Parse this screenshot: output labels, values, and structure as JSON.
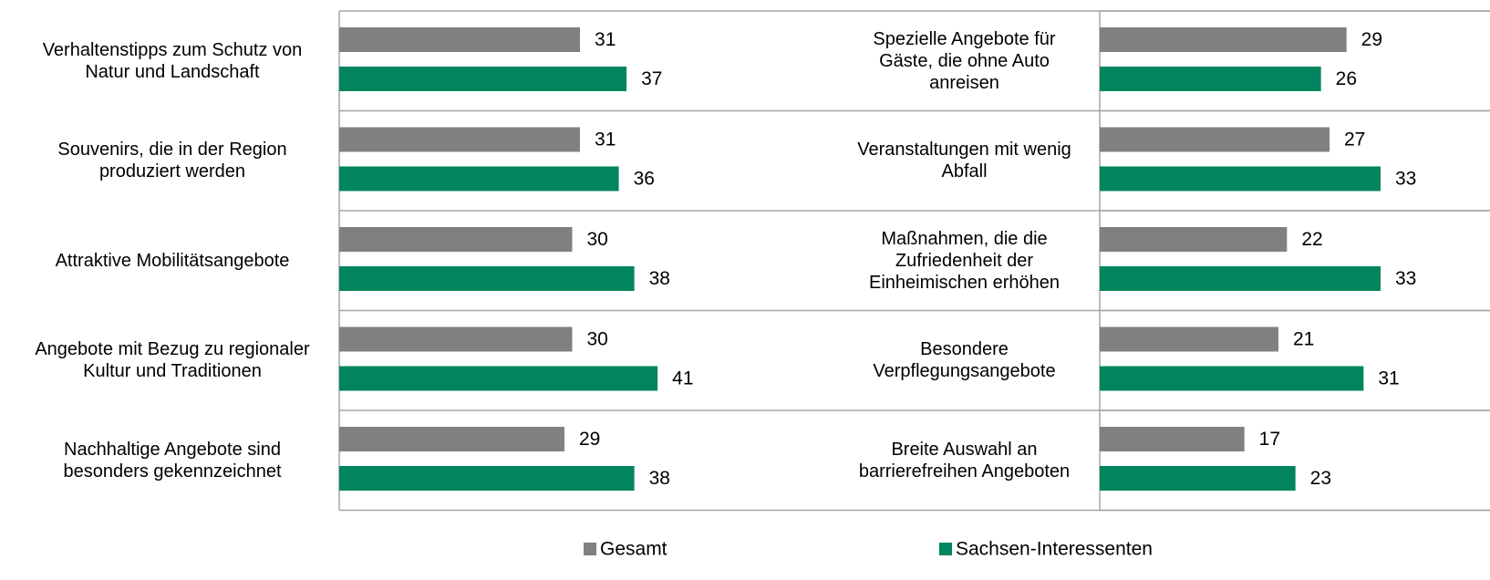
{
  "chart_data": [
    {
      "type": "bar",
      "orientation": "horizontal",
      "categories": [
        "Verhaltenstipps zum Schutz von\nNatur und Landschaft",
        "Souvenirs, die in der Region\nproduziert werden",
        "Attraktive Mobilitätsangebote",
        "Angebote mit Bezug zu regionaler\nKultur und Traditionen",
        "Nachhaltige Angebote sind\nbesonders gekennzeichnet"
      ],
      "series": [
        {
          "name": "Gesamt",
          "color": "#808080",
          "values": [
            31,
            31,
            30,
            30,
            29
          ]
        },
        {
          "name": "Sachsen-Interessenten",
          "color": "#00855f",
          "values": [
            37,
            36,
            38,
            41,
            38
          ]
        }
      ],
      "xlim": [
        0,
        60
      ]
    },
    {
      "type": "bar",
      "orientation": "horizontal",
      "categories": [
        "Spezielle Angebote für\nGäste, die ohne Auto\nanreisen",
        "Veranstaltungen mit wenig\nAbfall",
        "Maßnahmen, die die\nZufriedenheit der\nEinheimischen erhöhen",
        "Besondere\nVerpflegungsangebote",
        "Breite Auswahl an\nbarrierefreihen Angeboten"
      ],
      "series": [
        {
          "color": "#808080",
          "values": [
            29,
            27,
            22,
            21,
            17
          ]
        },
        {
          "color": "#00855f",
          "values": [
            26,
            33,
            33,
            31,
            23
          ]
        }
      ],
      "xlim": [
        0,
        45
      ]
    }
  ]
}
